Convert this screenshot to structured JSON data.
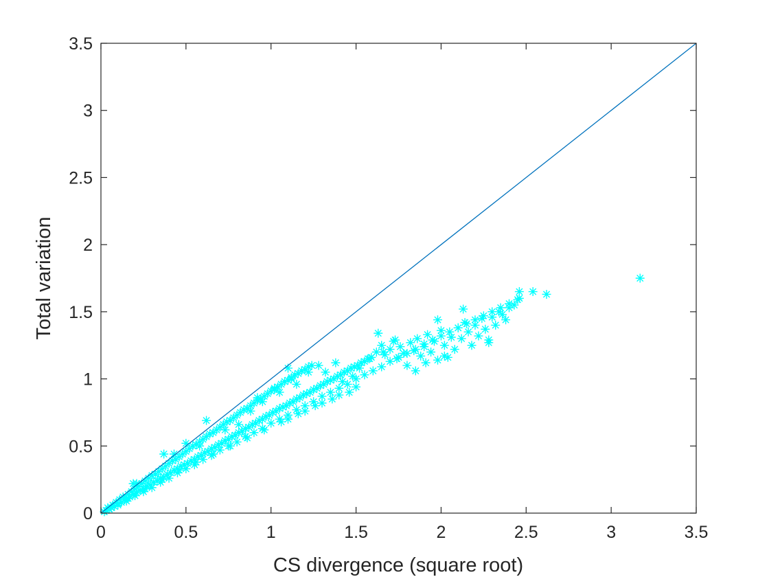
{
  "chart_data": {
    "type": "scatter",
    "title": "",
    "xlabel": "CS divergence (square root)",
    "ylabel": "Total variation",
    "xlim": [
      0,
      3.5
    ],
    "ylim": [
      0,
      3.5
    ],
    "xticks": [
      "0",
      "0.5",
      "1",
      "1.5",
      "2",
      "2.5",
      "3",
      "3.5"
    ],
    "yticks": [
      "0",
      "0.5",
      "1",
      "1.5",
      "2",
      "2.5",
      "3",
      "3.5"
    ],
    "grid": false,
    "legend": "none",
    "marker": "asterisk",
    "colors": {
      "points": "#00ffff",
      "reference_line": "#0072bd",
      "axes": "#262626"
    },
    "reference_line": {
      "x": [
        0,
        3.5
      ],
      "y": [
        0,
        3.5
      ]
    },
    "series": [
      {
        "values": [
          [
            0.02,
            0.01
          ],
          [
            0.03,
            0.02
          ],
          [
            0.05,
            0.03
          ],
          [
            0.06,
            0.04
          ],
          [
            0.08,
            0.05
          ],
          [
            0.1,
            0.07
          ],
          [
            0.12,
            0.08
          ],
          [
            0.14,
            0.1
          ],
          [
            0.15,
            0.11
          ],
          [
            0.17,
            0.12
          ],
          [
            0.19,
            0.14
          ],
          [
            0.21,
            0.15
          ],
          [
            0.23,
            0.17
          ],
          [
            0.25,
            0.18
          ],
          [
            0.27,
            0.2
          ],
          [
            0.29,
            0.21
          ],
          [
            0.31,
            0.23
          ],
          [
            0.33,
            0.24
          ],
          [
            0.35,
            0.26
          ],
          [
            0.37,
            0.27
          ],
          [
            0.39,
            0.29
          ],
          [
            0.41,
            0.3
          ],
          [
            0.43,
            0.32
          ],
          [
            0.45,
            0.33
          ],
          [
            0.47,
            0.35
          ],
          [
            0.49,
            0.36
          ],
          [
            0.51,
            0.37
          ],
          [
            0.53,
            0.39
          ],
          [
            0.55,
            0.4
          ],
          [
            0.57,
            0.42
          ],
          [
            0.59,
            0.43
          ],
          [
            0.61,
            0.45
          ],
          [
            0.63,
            0.46
          ],
          [
            0.65,
            0.48
          ],
          [
            0.67,
            0.49
          ],
          [
            0.69,
            0.51
          ],
          [
            0.71,
            0.52
          ],
          [
            0.73,
            0.54
          ],
          [
            0.75,
            0.55
          ],
          [
            0.77,
            0.57
          ],
          [
            0.79,
            0.58
          ],
          [
            0.81,
            0.6
          ],
          [
            0.83,
            0.61
          ],
          [
            0.85,
            0.63
          ],
          [
            0.87,
            0.64
          ],
          [
            0.89,
            0.66
          ],
          [
            0.91,
            0.67
          ],
          [
            0.93,
            0.69
          ],
          [
            0.95,
            0.7
          ],
          [
            0.97,
            0.72
          ],
          [
            0.99,
            0.73
          ],
          [
            1.01,
            0.75
          ],
          [
            1.03,
            0.76
          ],
          [
            1.05,
            0.78
          ],
          [
            1.07,
            0.79
          ],
          [
            1.09,
            0.8
          ],
          [
            1.11,
            0.82
          ],
          [
            1.13,
            0.83
          ],
          [
            1.15,
            0.85
          ],
          [
            1.17,
            0.86
          ],
          [
            1.19,
            0.88
          ],
          [
            1.21,
            0.89
          ],
          [
            1.23,
            0.9
          ],
          [
            1.25,
            0.92
          ],
          [
            1.27,
            0.93
          ],
          [
            1.29,
            0.95
          ],
          [
            1.31,
            0.96
          ],
          [
            1.33,
            0.98
          ],
          [
            1.35,
            0.99
          ],
          [
            1.37,
            1.0
          ],
          [
            1.39,
            1.02
          ],
          [
            1.41,
            1.03
          ],
          [
            1.43,
            1.05
          ],
          [
            1.45,
            1.06
          ],
          [
            1.47,
            1.08
          ],
          [
            1.49,
            1.09
          ],
          [
            1.51,
            1.1
          ],
          [
            1.53,
            1.12
          ],
          [
            1.55,
            1.13
          ],
          [
            1.57,
            1.15
          ],
          [
            1.59,
            1.16
          ],
          [
            0.04,
            0.04
          ],
          [
            0.07,
            0.06
          ],
          [
            0.09,
            0.08
          ],
          [
            0.11,
            0.1
          ],
          [
            0.13,
            0.12
          ],
          [
            0.16,
            0.14
          ],
          [
            0.18,
            0.16
          ],
          [
            0.2,
            0.18
          ],
          [
            0.22,
            0.2
          ],
          [
            0.24,
            0.22
          ],
          [
            0.26,
            0.24
          ],
          [
            0.28,
            0.26
          ],
          [
            0.3,
            0.28
          ],
          [
            0.32,
            0.29
          ],
          [
            0.34,
            0.31
          ],
          [
            0.36,
            0.33
          ],
          [
            0.38,
            0.35
          ],
          [
            0.4,
            0.37
          ],
          [
            0.42,
            0.39
          ],
          [
            0.44,
            0.4
          ],
          [
            0.46,
            0.42
          ],
          [
            0.48,
            0.44
          ],
          [
            0.5,
            0.46
          ],
          [
            0.52,
            0.48
          ],
          [
            0.54,
            0.5
          ],
          [
            0.56,
            0.51
          ],
          [
            0.58,
            0.53
          ],
          [
            0.6,
            0.55
          ],
          [
            0.62,
            0.57
          ],
          [
            0.64,
            0.59
          ],
          [
            0.66,
            0.6
          ],
          [
            0.68,
            0.62
          ],
          [
            0.7,
            0.64
          ],
          [
            0.72,
            0.66
          ],
          [
            0.74,
            0.68
          ],
          [
            0.76,
            0.69
          ],
          [
            0.78,
            0.71
          ],
          [
            0.8,
            0.73
          ],
          [
            0.82,
            0.75
          ],
          [
            0.84,
            0.77
          ],
          [
            0.86,
            0.78
          ],
          [
            0.88,
            0.8
          ],
          [
            0.9,
            0.82
          ],
          [
            0.92,
            0.84
          ],
          [
            0.94,
            0.85
          ],
          [
            0.96,
            0.87
          ],
          [
            0.98,
            0.89
          ],
          [
            1.0,
            0.91
          ],
          [
            1.02,
            0.92
          ],
          [
            1.04,
            0.94
          ],
          [
            1.06,
            0.96
          ],
          [
            1.08,
            0.98
          ],
          [
            1.1,
            0.99
          ],
          [
            1.12,
            1.01
          ],
          [
            1.14,
            1.03
          ],
          [
            1.16,
            1.04
          ],
          [
            1.18,
            1.06
          ],
          [
            1.2,
            1.07
          ],
          [
            1.22,
            1.09
          ],
          [
            1.24,
            1.1
          ],
          [
            0.1,
            0.06
          ],
          [
            0.15,
            0.09
          ],
          [
            0.2,
            0.13
          ],
          [
            0.25,
            0.16
          ],
          [
            0.3,
            0.19
          ],
          [
            0.35,
            0.23
          ],
          [
            0.4,
            0.26
          ],
          [
            0.45,
            0.3
          ],
          [
            0.5,
            0.33
          ],
          [
            0.55,
            0.36
          ],
          [
            0.6,
            0.4
          ],
          [
            0.65,
            0.43
          ],
          [
            0.7,
            0.47
          ],
          [
            0.75,
            0.5
          ],
          [
            0.8,
            0.53
          ],
          [
            0.85,
            0.57
          ],
          [
            0.9,
            0.6
          ],
          [
            0.95,
            0.63
          ],
          [
            1.0,
            0.67
          ],
          [
            1.05,
            0.7
          ],
          [
            1.1,
            0.73
          ],
          [
            1.15,
            0.77
          ],
          [
            1.2,
            0.8
          ],
          [
            1.25,
            0.83
          ],
          [
            1.3,
            0.87
          ],
          [
            1.35,
            0.9
          ],
          [
            1.4,
            0.93
          ],
          [
            1.45,
            0.96
          ],
          [
            1.5,
            1.0
          ],
          [
            1.55,
            1.03
          ],
          [
            1.6,
            1.06
          ],
          [
            1.65,
            1.09
          ],
          [
            1.7,
            1.13
          ],
          [
            1.75,
            1.16
          ],
          [
            1.8,
            1.19
          ],
          [
            1.85,
            1.22
          ],
          [
            1.9,
            1.26
          ],
          [
            1.95,
            1.29
          ],
          [
            2.0,
            1.32
          ],
          [
            2.05,
            1.35
          ],
          [
            2.1,
            1.38
          ],
          [
            2.15,
            1.41
          ],
          [
            2.2,
            1.44
          ],
          [
            2.25,
            1.47
          ],
          [
            2.3,
            1.5
          ],
          [
            2.35,
            1.53
          ],
          [
            2.4,
            1.56
          ],
          [
            2.45,
            1.59
          ],
          [
            1.62,
            1.2
          ],
          [
            1.65,
            1.25
          ],
          [
            1.67,
            1.18
          ],
          [
            1.7,
            1.22
          ],
          [
            1.72,
            1.28
          ],
          [
            1.74,
            1.15
          ],
          [
            1.76,
            1.24
          ],
          [
            1.78,
            1.19
          ],
          [
            1.8,
            1.1
          ],
          [
            1.82,
            1.27
          ],
          [
            1.84,
            1.21
          ],
          [
            1.86,
            1.3
          ],
          [
            1.88,
            1.17
          ],
          [
            1.9,
            1.24
          ],
          [
            1.92,
            1.33
          ],
          [
            1.94,
            1.2
          ],
          [
            1.96,
            1.28
          ],
          [
            1.98,
            1.14
          ],
          [
            2.0,
            1.36
          ],
          [
            2.02,
            1.25
          ],
          [
            2.04,
            1.16
          ],
          [
            2.06,
            1.31
          ],
          [
            2.08,
            1.22
          ],
          [
            2.1,
            1.38
          ],
          [
            2.12,
            1.3
          ],
          [
            2.14,
            1.42
          ],
          [
            2.16,
            1.35
          ],
          [
            2.18,
            1.25
          ],
          [
            2.2,
            1.4
          ],
          [
            2.22,
            1.32
          ],
          [
            2.24,
            1.45
          ],
          [
            2.26,
            1.37
          ],
          [
            2.28,
            1.29
          ],
          [
            2.3,
            1.46
          ],
          [
            2.32,
            1.4
          ],
          [
            2.34,
            1.5
          ],
          [
            2.36,
            1.48
          ],
          [
            2.38,
            1.44
          ],
          [
            2.4,
            1.53
          ],
          [
            2.43,
            1.55
          ],
          [
            2.46,
            1.6
          ],
          [
            0.19,
            0.22
          ],
          [
            0.21,
            0.22
          ],
          [
            0.37,
            0.44
          ],
          [
            0.43,
            0.44
          ],
          [
            0.5,
            0.52
          ],
          [
            0.62,
            0.69
          ],
          [
            0.58,
            0.5
          ],
          [
            0.73,
            0.62
          ],
          [
            0.81,
            0.66
          ],
          [
            0.88,
            0.76
          ],
          [
            0.92,
            0.86
          ],
          [
            0.95,
            0.83
          ],
          [
            1.02,
            0.93
          ],
          [
            1.05,
            0.9
          ],
          [
            1.1,
            1.08
          ],
          [
            1.12,
            1.0
          ],
          [
            1.15,
            0.96
          ],
          [
            1.22,
            1.05
          ],
          [
            1.28,
            1.1
          ],
          [
            1.32,
            1.05
          ],
          [
            1.38,
            1.12
          ],
          [
            1.42,
            0.98
          ],
          [
            1.48,
            1.02
          ],
          [
            1.52,
            1.08
          ],
          [
            1.58,
            1.15
          ],
          [
            1.63,
            1.34
          ],
          [
            1.66,
            1.2
          ],
          [
            1.73,
            1.29
          ],
          [
            1.85,
            1.06
          ],
          [
            1.91,
            1.12
          ],
          [
            1.98,
            1.44
          ],
          [
            2.02,
            1.17
          ],
          [
            2.13,
            1.52
          ],
          [
            2.28,
            1.27
          ],
          [
            2.46,
            1.65
          ],
          [
            2.54,
            1.65
          ],
          [
            2.62,
            1.63
          ],
          [
            3.17,
            1.75
          ],
          [
            1.1,
            0.7
          ],
          [
            1.2,
            0.76
          ],
          [
            1.3,
            0.82
          ],
          [
            1.4,
            0.88
          ],
          [
            1.5,
            0.94
          ],
          [
            1.46,
            0.9
          ],
          [
            1.36,
            0.85
          ],
          [
            1.26,
            0.8
          ],
          [
            1.16,
            0.74
          ],
          [
            1.06,
            0.68
          ],
          [
            0.96,
            0.62
          ],
          [
            0.86,
            0.56
          ],
          [
            0.76,
            0.5
          ],
          [
            0.66,
            0.44
          ],
          [
            0.56,
            0.38
          ],
          [
            0.46,
            0.32
          ],
          [
            0.36,
            0.25
          ],
          [
            0.26,
            0.18
          ],
          [
            0.16,
            0.11
          ],
          [
            0.06,
            0.04
          ]
        ]
      }
    ]
  }
}
